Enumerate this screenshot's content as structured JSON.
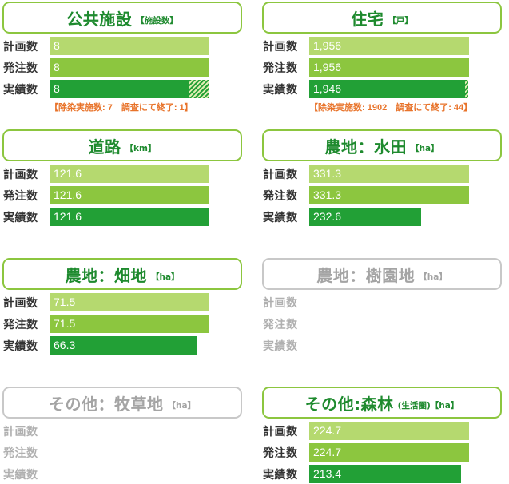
{
  "row_labels": [
    "計画数",
    "発注数",
    "実績数"
  ],
  "chart_data": [
    {
      "type": "bar",
      "title": "公共施設",
      "unit": "【施設数】",
      "active": true,
      "categories": [
        "計画数",
        "発注数",
        "実績数"
      ],
      "values": [
        8,
        8,
        8
      ],
      "labels": [
        "8",
        "8",
        "8"
      ],
      "max": 8,
      "hatched_fraction": 0.125,
      "note": "【除染実施数: 7　調査にて終了: 1】"
    },
    {
      "type": "bar",
      "title": "住宅",
      "unit": "【戸】",
      "active": true,
      "categories": [
        "計画数",
        "発注数",
        "実績数"
      ],
      "values": [
        1956,
        1956,
        1946
      ],
      "labels": [
        "1,956",
        "1,956",
        "1,946"
      ],
      "max": 1956,
      "hatched_fraction": 0.0225,
      "note": "【除染実施数: 1902　調査にて終了: 44】"
    },
    {
      "type": "bar",
      "title": "道路",
      "unit": "【km】",
      "active": true,
      "categories": [
        "計画数",
        "発注数",
        "実績数"
      ],
      "values": [
        121.6,
        121.6,
        121.6
      ],
      "labels": [
        "121.6",
        "121.6",
        "121.6"
      ],
      "max": 121.6,
      "hatched_fraction": 0,
      "note": ""
    },
    {
      "type": "bar",
      "title": "農地：水田",
      "unit": "【ha】",
      "active": true,
      "categories": [
        "計画数",
        "発注数",
        "実績数"
      ],
      "values": [
        331.3,
        331.3,
        232.6
      ],
      "labels": [
        "331.3",
        "331.3",
        "232.6"
      ],
      "max": 331.3,
      "hatched_fraction": 0,
      "note": ""
    },
    {
      "type": "bar",
      "title": "農地：畑地",
      "unit": "【ha】",
      "active": true,
      "categories": [
        "計画数",
        "発注数",
        "実績数"
      ],
      "values": [
        71.5,
        71.5,
        66.3
      ],
      "labels": [
        "71.5",
        "71.5",
        "66.3"
      ],
      "max": 71.5,
      "hatched_fraction": 0,
      "note": ""
    },
    {
      "type": "bar",
      "title": "農地：樹園地",
      "unit": "【ha】",
      "active": false,
      "categories": [
        "計画数",
        "発注数",
        "実績数"
      ],
      "values": [],
      "labels": [],
      "max": 1,
      "hatched_fraction": 0,
      "note": ""
    },
    {
      "type": "bar",
      "title": "その他：牧草地",
      "unit": "【ha】",
      "active": false,
      "categories": [
        "計画数",
        "発注数",
        "実績数"
      ],
      "values": [],
      "labels": [],
      "max": 1,
      "hatched_fraction": 0,
      "note": ""
    },
    {
      "type": "bar",
      "title": "その他:森林",
      "unit": "(生活圏)【ha】",
      "active": true,
      "categories": [
        "計画数",
        "発注数",
        "実績数"
      ],
      "values": [
        224.7,
        224.7,
        213.4
      ],
      "labels": [
        "224.7",
        "224.7",
        "213.4"
      ],
      "max": 224.7,
      "hatched_fraction": 0,
      "note": ""
    }
  ],
  "colors": {
    "plan": "#b5d96f",
    "order": "#8cc63f",
    "actual": "#22a036",
    "title_border": "#8cc63f",
    "title_text": "#1e8a2e",
    "inactive": "#a4a4a4",
    "note": "#e8732a"
  }
}
